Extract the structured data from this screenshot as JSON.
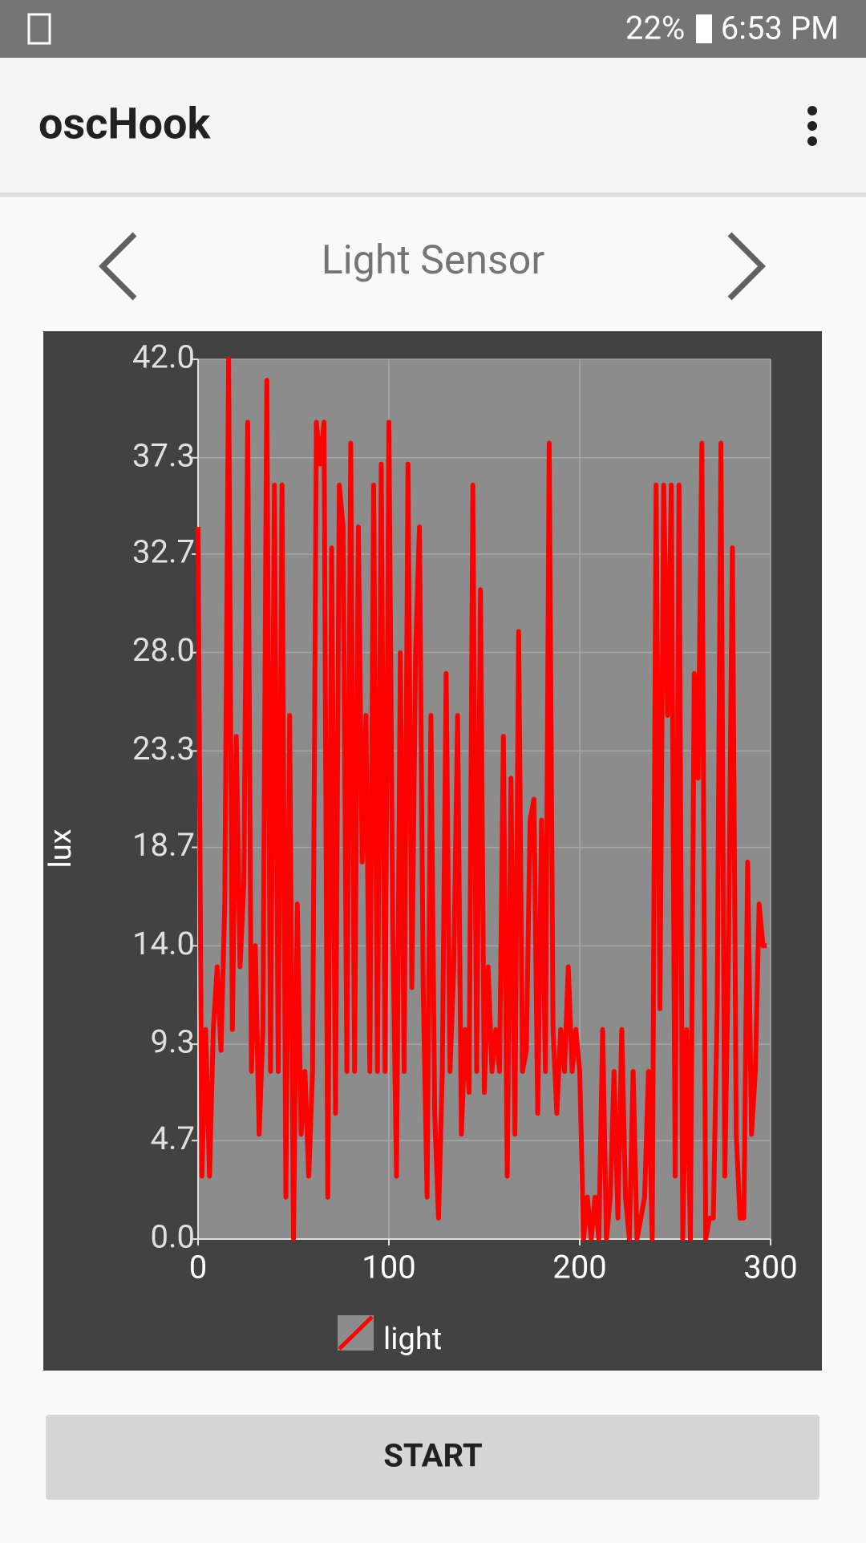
{
  "status_bar": {
    "battery": "22%",
    "time": "6:53 PM"
  },
  "app_bar": {
    "title": "oscHook"
  },
  "sensor_title": "Light Sensor",
  "chart_data": {
    "type": "line",
    "y_label": "lux",
    "x": [
      0,
      2,
      4,
      6,
      8,
      10,
      12,
      14,
      16,
      18,
      20,
      22,
      24,
      26,
      28,
      30,
      32,
      34,
      36,
      38,
      40,
      42,
      44,
      46,
      48,
      50,
      52,
      54,
      56,
      58,
      60,
      62,
      64,
      66,
      68,
      70,
      72,
      74,
      76,
      78,
      80,
      82,
      84,
      86,
      88,
      90,
      92,
      94,
      96,
      98,
      100,
      102,
      104,
      106,
      108,
      110,
      112,
      114,
      116,
      118,
      120,
      122,
      124,
      126,
      128,
      130,
      132,
      134,
      136,
      138,
      140,
      142,
      144,
      146,
      148,
      150,
      152,
      154,
      156,
      158,
      160,
      162,
      164,
      166,
      168,
      170,
      172,
      174,
      176,
      178,
      180,
      182,
      184,
      186,
      188,
      190,
      192,
      194,
      196,
      198,
      200,
      202,
      204,
      206,
      208,
      210,
      212,
      214,
      216,
      218,
      220,
      222,
      224,
      226,
      228,
      230,
      232,
      234,
      236,
      238,
      240,
      242,
      244,
      246,
      248,
      250,
      252,
      254,
      256,
      258,
      260,
      262,
      264,
      266,
      268,
      270,
      272,
      274,
      276,
      278,
      280,
      282,
      284,
      286,
      288,
      290,
      292,
      294,
      296,
      298
    ],
    "series": [
      {
        "name": "light",
        "color": "#ff0000",
        "values": [
          34,
          3,
          10,
          3,
          10,
          13,
          9,
          16,
          42,
          10,
          24,
          13,
          17,
          39,
          8,
          14,
          5,
          10,
          41,
          8,
          36,
          8,
          36,
          2,
          25,
          0,
          16,
          5,
          8,
          3,
          8,
          39,
          37,
          39,
          2,
          33,
          6,
          36,
          34,
          8,
          38,
          8,
          34,
          18,
          25,
          8,
          36,
          8,
          37,
          8,
          39,
          15,
          3,
          28,
          8,
          37,
          12,
          28,
          34,
          12,
          2,
          25,
          6,
          1,
          8,
          27,
          8,
          13,
          25,
          5,
          10,
          7,
          36,
          8,
          31,
          7,
          13,
          8,
          10,
          8,
          24,
          3,
          22,
          5,
          29,
          8,
          9,
          20,
          21,
          6,
          20,
          8,
          38,
          10,
          6,
          10,
          8,
          13,
          8,
          10,
          8,
          0,
          2,
          0,
          2,
          0,
          10,
          0,
          2,
          8,
          1,
          10,
          2,
          0,
          8,
          0,
          1,
          2,
          8,
          0,
          36,
          11,
          36,
          25,
          36,
          3,
          36,
          0,
          10,
          0,
          27,
          22,
          38,
          0,
          1,
          1,
          11,
          38,
          3,
          14,
          33,
          5,
          1,
          1,
          18,
          5,
          8,
          16,
          14,
          14
        ]
      }
    ],
    "xlim": [
      0,
      300
    ],
    "ylim": [
      0,
      42
    ],
    "xticks": [
      0,
      100,
      200,
      300
    ],
    "yticks": [
      {
        "value": 0,
        "label": "0.0"
      },
      4.7,
      9.3,
      {
        "value": 14,
        "label": "14.0"
      },
      18.7,
      23.3,
      {
        "value": 28,
        "label": "28.0"
      },
      32.7,
      37.3,
      {
        "value": 42,
        "label": "42.0"
      }
    ],
    "grid": true
  },
  "button": "START"
}
